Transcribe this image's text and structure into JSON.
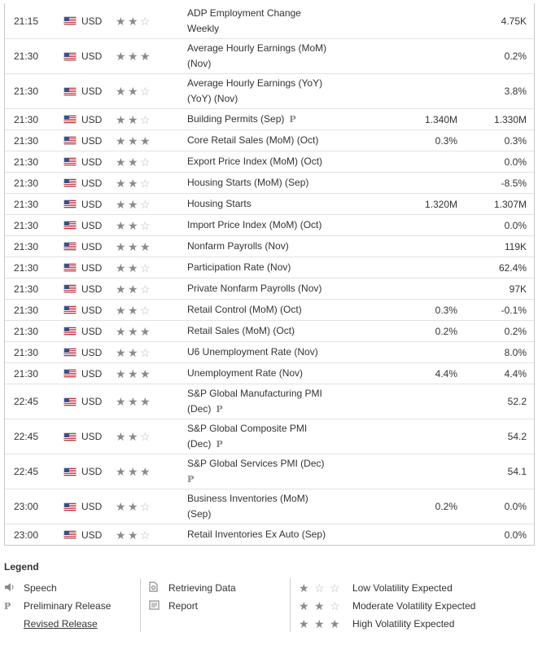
{
  "events": [
    {
      "time": "21:15",
      "currency": "USD",
      "volatility": 2,
      "event_lines": [
        "ADP Employment Change",
        "Weekly"
      ],
      "preliminary": false,
      "forecast": "",
      "previous": "4.75K"
    },
    {
      "time": "21:30",
      "currency": "USD",
      "volatility": 3,
      "event_lines": [
        "Average Hourly Earnings (MoM)",
        "(Nov)"
      ],
      "preliminary": false,
      "forecast": "",
      "previous": "0.2%"
    },
    {
      "time": "21:30",
      "currency": "USD",
      "volatility": 2,
      "event_lines": [
        "Average Hourly Earnings (YoY)",
        "(YoY) (Nov)"
      ],
      "preliminary": false,
      "forecast": "",
      "previous": "3.8%"
    },
    {
      "time": "21:30",
      "currency": "USD",
      "volatility": 2,
      "event_lines": [
        "Building Permits (Sep)"
      ],
      "preliminary": true,
      "forecast": "1.340M",
      "previous": "1.330M"
    },
    {
      "time": "21:30",
      "currency": "USD",
      "volatility": 3,
      "event_lines": [
        "Core Retail Sales (MoM) (Oct)"
      ],
      "preliminary": false,
      "forecast": "0.3%",
      "previous": "0.3%"
    },
    {
      "time": "21:30",
      "currency": "USD",
      "volatility": 2,
      "event_lines": [
        "Export Price Index (MoM) (Oct)"
      ],
      "preliminary": false,
      "forecast": "",
      "previous": "0.0%"
    },
    {
      "time": "21:30",
      "currency": "USD",
      "volatility": 2,
      "event_lines": [
        "Housing Starts (MoM) (Sep)"
      ],
      "preliminary": false,
      "forecast": "",
      "previous": "-8.5%"
    },
    {
      "time": "21:30",
      "currency": "USD",
      "volatility": 2,
      "event_lines": [
        "Housing Starts"
      ],
      "preliminary": false,
      "forecast": "1.320M",
      "previous": "1.307M"
    },
    {
      "time": "21:30",
      "currency": "USD",
      "volatility": 2,
      "event_lines": [
        "Import Price Index (MoM) (Oct)"
      ],
      "preliminary": false,
      "forecast": "",
      "previous": "0.0%"
    },
    {
      "time": "21:30",
      "currency": "USD",
      "volatility": 3,
      "event_lines": [
        "Nonfarm Payrolls (Nov)"
      ],
      "preliminary": false,
      "forecast": "",
      "previous": "119K"
    },
    {
      "time": "21:30",
      "currency": "USD",
      "volatility": 2,
      "event_lines": [
        "Participation Rate (Nov)"
      ],
      "preliminary": false,
      "forecast": "",
      "previous": "62.4%"
    },
    {
      "time": "21:30",
      "currency": "USD",
      "volatility": 2,
      "event_lines": [
        "Private Nonfarm Payrolls (Nov)"
      ],
      "preliminary": false,
      "forecast": "",
      "previous": "97K"
    },
    {
      "time": "21:30",
      "currency": "USD",
      "volatility": 2,
      "event_lines": [
        "Retail Control (MoM) (Oct)"
      ],
      "preliminary": false,
      "forecast": "0.3%",
      "previous": "-0.1%"
    },
    {
      "time": "21:30",
      "currency": "USD",
      "volatility": 3,
      "event_lines": [
        "Retail Sales (MoM) (Oct)"
      ],
      "preliminary": false,
      "forecast": "0.2%",
      "previous": "0.2%"
    },
    {
      "time": "21:30",
      "currency": "USD",
      "volatility": 2,
      "event_lines": [
        "U6 Unemployment Rate (Nov)"
      ],
      "preliminary": false,
      "forecast": "",
      "previous": "8.0%"
    },
    {
      "time": "21:30",
      "currency": "USD",
      "volatility": 3,
      "event_lines": [
        "Unemployment Rate (Nov)"
      ],
      "preliminary": false,
      "forecast": "4.4%",
      "previous": "4.4%"
    },
    {
      "time": "22:45",
      "currency": "USD",
      "volatility": 3,
      "event_lines": [
        "S&P Global Manufacturing PMI",
        "(Dec)"
      ],
      "preliminary": true,
      "forecast": "",
      "previous": "52.2"
    },
    {
      "time": "22:45",
      "currency": "USD",
      "volatility": 2,
      "event_lines": [
        "S&P Global Composite PMI",
        "(Dec)"
      ],
      "preliminary": true,
      "forecast": "",
      "previous": "54.2"
    },
    {
      "time": "22:45",
      "currency": "USD",
      "volatility": 3,
      "event_lines": [
        "S&P Global Services PMI (Dec)",
        ""
      ],
      "preliminary": true,
      "forecast": "",
      "previous": "54.1"
    },
    {
      "time": "23:00",
      "currency": "USD",
      "volatility": 2,
      "event_lines": [
        "Business Inventories (MoM)",
        "(Sep)"
      ],
      "preliminary": false,
      "forecast": "0.2%",
      "previous": "0.0%"
    },
    {
      "time": "23:00",
      "currency": "USD",
      "volatility": 2,
      "event_lines": [
        "Retail Inventories Ex Auto (Sep)"
      ],
      "preliminary": false,
      "forecast": "",
      "previous": "0.0%"
    }
  ],
  "legend": {
    "title": "Legend",
    "speech": "Speech",
    "preliminary": "Preliminary Release",
    "revised": "Revised Release",
    "retrieving": "Retrieving Data",
    "report": "Report",
    "low": "Low Volatility Expected",
    "moderate": "Moderate Volatility Expected",
    "high": "High Volatility Expected",
    "prelim_symbol": "P"
  },
  "colors": {
    "star_on": "#8a8a8a",
    "star_off": "#b9b9b9",
    "flag_red": "#cc2a36",
    "flag_blue": "#3c4f8c"
  }
}
